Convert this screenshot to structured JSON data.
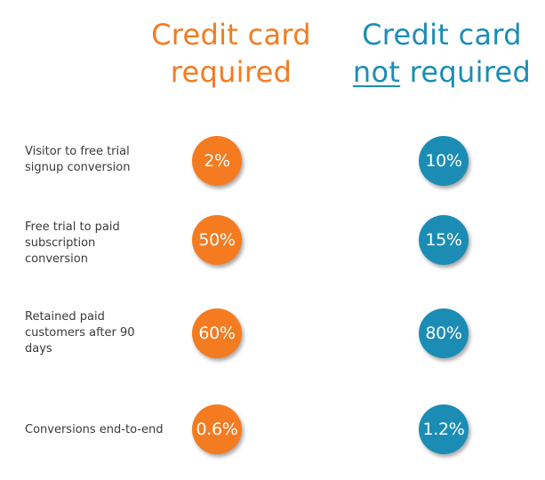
{
  "headers": {
    "credit_card_required": {
      "line1": "Credit card",
      "line2": "required"
    },
    "credit_card_not_required": {
      "line1": "Credit card",
      "line2_underlined": "not",
      "line2_rest": " required"
    }
  },
  "rows": [
    {
      "label": "Visitor to free trial signup conversion",
      "required": "2%",
      "not_required": "10%"
    },
    {
      "label": "Free trial to paid subscription conversion",
      "required": "50%",
      "not_required": "15%"
    },
    {
      "label": "Retained paid customers after 90 days",
      "required": "60%",
      "not_required": "80%"
    },
    {
      "label": "Conversions end-to-end",
      "required": "0.6%",
      "not_required": "1.2%"
    }
  ],
  "colors": {
    "required": "#F47B20",
    "not_required": "#1B8DB5",
    "label_text": "#3a3a3a"
  }
}
